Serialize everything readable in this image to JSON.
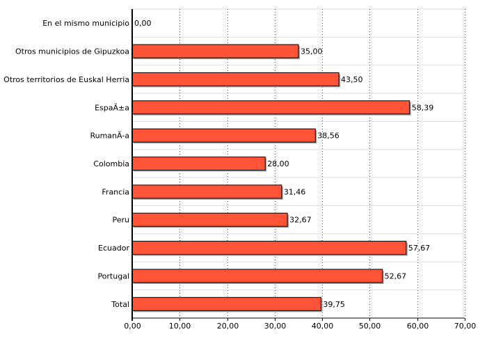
{
  "chart_data": {
    "type": "bar",
    "orientation": "horizontal",
    "categories": [
      "En el mismo municipio",
      "Otros municipios de Gipuzkoa",
      "Otros territorios de Euskal Herria",
      "EspaÃ±a",
      "RumanÃ-a",
      "Colombia",
      "Francia",
      "Peru",
      "Ecuador",
      "Portugal",
      "Total"
    ],
    "values": [
      0.0,
      35.0,
      43.5,
      58.39,
      38.56,
      28.0,
      31.46,
      32.67,
      57.67,
      52.67,
      39.75
    ],
    "value_labels": [
      "0,00",
      "35,00",
      "43,50",
      "58,39",
      "38,56",
      "28,00",
      "31,46",
      "32,67",
      "57,67",
      "52,67",
      "39,75"
    ],
    "xlim": [
      0,
      70
    ],
    "x_ticks": [
      0,
      10,
      20,
      30,
      40,
      50,
      60,
      70
    ],
    "x_tick_labels": [
      "0,00",
      "10,00",
      "20,00",
      "30,00",
      "40,00",
      "50,00",
      "60,00",
      "70,00"
    ],
    "title": "",
    "xlabel": "",
    "ylabel": "",
    "grid": true,
    "colors": {
      "bar_fill": "#ff5438",
      "bar_stroke": "#000000",
      "shadow": "#a0a0a0",
      "grid": "#555555",
      "row_line": "#dddddd"
    }
  }
}
